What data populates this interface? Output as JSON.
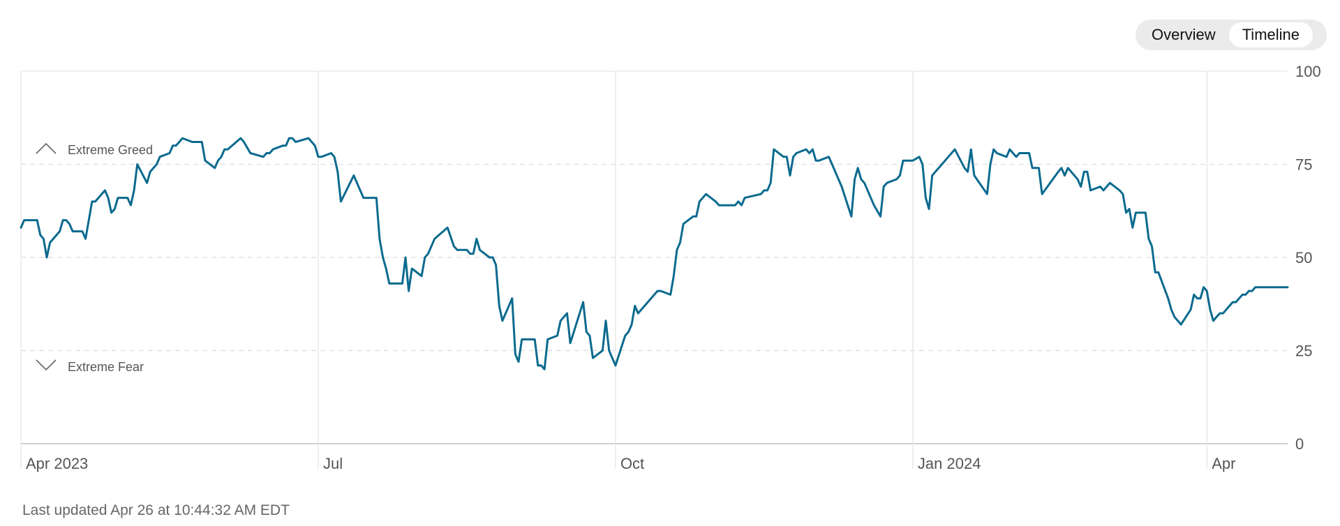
{
  "toggle": {
    "options": [
      "Overview",
      "Timeline"
    ],
    "selected": "Timeline"
  },
  "footer": {
    "last_updated": "Last updated Apr 26 at 10:44:32 AM EDT"
  },
  "chart_data": {
    "type": "line",
    "title": "",
    "xlabel": "",
    "ylabel": "",
    "ylim": [
      0,
      100
    ],
    "yticks": [
      "0",
      "25",
      "50",
      "75",
      "100"
    ],
    "xticks": [
      "Apr 2023",
      "Jul",
      "Oct",
      "Jan 2024",
      "Apr"
    ],
    "xlim": [
      "2023-03-31",
      "2024-04-26"
    ],
    "grid": true,
    "annotations": {
      "upper": "Extreme Greed",
      "lower": "Extreme Fear"
    },
    "line_color": "#0b6a8e",
    "series": [
      {
        "points": [
          [
            "2023-03-31",
            58
          ],
          [
            "2023-04-01",
            60
          ],
          [
            "2023-04-05",
            60
          ],
          [
            "2023-04-06",
            56
          ],
          [
            "2023-04-07",
            55
          ],
          [
            "2023-04-08",
            50
          ],
          [
            "2023-04-09",
            54
          ],
          [
            "2023-04-12",
            57
          ],
          [
            "2023-04-13",
            60
          ],
          [
            "2023-04-14",
            60
          ],
          [
            "2023-04-15",
            59
          ],
          [
            "2023-04-16",
            57
          ],
          [
            "2023-04-19",
            57
          ],
          [
            "2023-04-20",
            55
          ],
          [
            "2023-04-22",
            65
          ],
          [
            "2023-04-23",
            65
          ],
          [
            "2023-04-26",
            68
          ],
          [
            "2023-04-27",
            66
          ],
          [
            "2023-04-28",
            62
          ],
          [
            "2023-04-29",
            63
          ],
          [
            "2023-04-30",
            66
          ],
          [
            "2023-05-03",
            66
          ],
          [
            "2023-05-04",
            64
          ],
          [
            "2023-05-05",
            68
          ],
          [
            "2023-05-06",
            75
          ],
          [
            "2023-05-09",
            70
          ],
          [
            "2023-05-10",
            73
          ],
          [
            "2023-05-12",
            75
          ],
          [
            "2023-05-13",
            77
          ],
          [
            "2023-05-16",
            78
          ],
          [
            "2023-05-17",
            80
          ],
          [
            "2023-05-18",
            80
          ],
          [
            "2023-05-19",
            81
          ],
          [
            "2023-05-20",
            82
          ],
          [
            "2023-05-23",
            81
          ],
          [
            "2023-05-26",
            81
          ],
          [
            "2023-05-27",
            76
          ],
          [
            "2023-05-30",
            74
          ],
          [
            "2023-05-31",
            76
          ],
          [
            "2023-06-01",
            77
          ],
          [
            "2023-06-02",
            79
          ],
          [
            "2023-06-03",
            79
          ],
          [
            "2023-06-07",
            82
          ],
          [
            "2023-06-08",
            81
          ],
          [
            "2023-06-10",
            78
          ],
          [
            "2023-06-14",
            77
          ],
          [
            "2023-06-15",
            78
          ],
          [
            "2023-06-16",
            78
          ],
          [
            "2023-06-17",
            79
          ],
          [
            "2023-06-20",
            80
          ],
          [
            "2023-06-21",
            80
          ],
          [
            "2023-06-22",
            82
          ],
          [
            "2023-06-23",
            82
          ],
          [
            "2023-06-24",
            81
          ],
          [
            "2023-06-28",
            82
          ],
          [
            "2023-06-29",
            81
          ],
          [
            "2023-06-30",
            80
          ],
          [
            "2023-07-01",
            77
          ],
          [
            "2023-07-02",
            77
          ],
          [
            "2023-07-05",
            78
          ],
          [
            "2023-07-06",
            77
          ],
          [
            "2023-07-07",
            73
          ],
          [
            "2023-07-08",
            65
          ],
          [
            "2023-07-12",
            72
          ],
          [
            "2023-07-13",
            70
          ],
          [
            "2023-07-15",
            66
          ],
          [
            "2023-07-19",
            66
          ],
          [
            "2023-07-20",
            55
          ],
          [
            "2023-07-21",
            50
          ],
          [
            "2023-07-22",
            47
          ],
          [
            "2023-07-23",
            43
          ],
          [
            "2023-07-27",
            43
          ],
          [
            "2023-07-28",
            50
          ],
          [
            "2023-07-29",
            41
          ],
          [
            "2023-07-30",
            47
          ],
          [
            "2023-08-02",
            45
          ],
          [
            "2023-08-03",
            50
          ],
          [
            "2023-08-04",
            51
          ],
          [
            "2023-08-06",
            55
          ],
          [
            "2023-08-10",
            58
          ],
          [
            "2023-08-12",
            53
          ],
          [
            "2023-08-13",
            52
          ],
          [
            "2023-08-16",
            52
          ],
          [
            "2023-08-17",
            51
          ],
          [
            "2023-08-18",
            51
          ],
          [
            "2023-08-19",
            55
          ],
          [
            "2023-08-20",
            52
          ],
          [
            "2023-08-23",
            50
          ],
          [
            "2023-08-24",
            50
          ],
          [
            "2023-08-25",
            48
          ],
          [
            "2023-08-26",
            37
          ],
          [
            "2023-08-27",
            33
          ],
          [
            "2023-08-30",
            39
          ],
          [
            "2023-08-31",
            24
          ],
          [
            "2023-09-01",
            22
          ],
          [
            "2023-09-02",
            28
          ],
          [
            "2023-09-03",
            28
          ],
          [
            "2023-09-06",
            28
          ],
          [
            "2023-09-07",
            21
          ],
          [
            "2023-09-08",
            21
          ],
          [
            "2023-09-09",
            20
          ],
          [
            "2023-09-10",
            28
          ],
          [
            "2023-09-13",
            29
          ],
          [
            "2023-09-14",
            33
          ],
          [
            "2023-09-16",
            35
          ],
          [
            "2023-09-17",
            27
          ],
          [
            "2023-09-21",
            38
          ],
          [
            "2023-09-22",
            30
          ],
          [
            "2023-09-23",
            29
          ],
          [
            "2023-09-24",
            23
          ],
          [
            "2023-09-27",
            25
          ],
          [
            "2023-09-28",
            33
          ],
          [
            "2023-09-29",
            25
          ],
          [
            "2023-09-30",
            23
          ],
          [
            "2023-10-01",
            21
          ],
          [
            "2023-10-04",
            29
          ],
          [
            "2023-10-05",
            30
          ],
          [
            "2023-10-06",
            32
          ],
          [
            "2023-10-07",
            37
          ],
          [
            "2023-10-08",
            35
          ],
          [
            "2023-10-11",
            38
          ],
          [
            "2023-10-12",
            39
          ],
          [
            "2023-10-13",
            40
          ],
          [
            "2023-10-14",
            41
          ],
          [
            "2023-10-15",
            41
          ],
          [
            "2023-10-18",
            40
          ],
          [
            "2023-10-19",
            45
          ],
          [
            "2023-10-20",
            52
          ],
          [
            "2023-10-21",
            54
          ],
          [
            "2023-10-22",
            59
          ],
          [
            "2023-10-25",
            61
          ],
          [
            "2023-10-26",
            61
          ],
          [
            "2023-10-27",
            65
          ],
          [
            "2023-10-29",
            67
          ],
          [
            "2023-11-01",
            65
          ],
          [
            "2023-11-02",
            64
          ],
          [
            "2023-11-03",
            64
          ],
          [
            "2023-11-07",
            64
          ],
          [
            "2023-11-08",
            65
          ],
          [
            "2023-11-09",
            64
          ],
          [
            "2023-11-10",
            66
          ],
          [
            "2023-11-15",
            67
          ],
          [
            "2023-11-16",
            68
          ],
          [
            "2023-11-17",
            68
          ],
          [
            "2023-11-18",
            70
          ],
          [
            "2023-11-19",
            79
          ],
          [
            "2023-11-22",
            77
          ],
          [
            "2023-11-23",
            77
          ],
          [
            "2023-11-24",
            72
          ],
          [
            "2023-11-25",
            77
          ],
          [
            "2023-11-26",
            78
          ],
          [
            "2023-11-29",
            79
          ],
          [
            "2023-11-30",
            78
          ],
          [
            "2023-12-01",
            79
          ],
          [
            "2023-12-02",
            76
          ],
          [
            "2023-12-03",
            76
          ],
          [
            "2023-12-06",
            77
          ],
          [
            "2023-12-07",
            75
          ],
          [
            "2023-12-08",
            73
          ],
          [
            "2023-12-10",
            69
          ],
          [
            "2023-12-13",
            61
          ],
          [
            "2023-12-14",
            71
          ],
          [
            "2023-12-15",
            74
          ],
          [
            "2023-12-16",
            71
          ],
          [
            "2023-12-17",
            70
          ],
          [
            "2023-12-20",
            64
          ],
          [
            "2023-12-22",
            61
          ],
          [
            "2023-12-23",
            69
          ],
          [
            "2023-12-24",
            70
          ],
          [
            "2023-12-27",
            71
          ],
          [
            "2023-12-28",
            72
          ],
          [
            "2023-12-29",
            76
          ],
          [
            "2023-12-30",
            76
          ],
          [
            "2024-01-01",
            76
          ],
          [
            "2024-01-03",
            77
          ],
          [
            "2024-01-04",
            75
          ],
          [
            "2024-01-05",
            66
          ],
          [
            "2024-01-06",
            63
          ],
          [
            "2024-01-07",
            72
          ],
          [
            "2024-01-10",
            75
          ],
          [
            "2024-01-11",
            76
          ],
          [
            "2024-01-12",
            77
          ],
          [
            "2024-01-14",
            79
          ],
          [
            "2024-01-17",
            74
          ],
          [
            "2024-01-18",
            73
          ],
          [
            "2024-01-19",
            79
          ],
          [
            "2024-01-20",
            72
          ],
          [
            "2024-01-24",
            67
          ],
          [
            "2024-01-25",
            75
          ],
          [
            "2024-01-26",
            79
          ],
          [
            "2024-01-27",
            78
          ],
          [
            "2024-01-30",
            77
          ],
          [
            "2024-01-31",
            79
          ],
          [
            "2024-02-01",
            78
          ],
          [
            "2024-02-02",
            77
          ],
          [
            "2024-02-03",
            78
          ],
          [
            "2024-02-06",
            78
          ],
          [
            "2024-02-07",
            74
          ],
          [
            "2024-02-08",
            74
          ],
          [
            "2024-02-09",
            74
          ],
          [
            "2024-02-10",
            67
          ],
          [
            "2024-02-15",
            73
          ],
          [
            "2024-02-16",
            74
          ],
          [
            "2024-02-17",
            72
          ],
          [
            "2024-02-18",
            74
          ],
          [
            "2024-02-21",
            71
          ],
          [
            "2024-02-22",
            69
          ],
          [
            "2024-02-23",
            73
          ],
          [
            "2024-02-24",
            73
          ],
          [
            "2024-02-25",
            68
          ],
          [
            "2024-02-28",
            69
          ],
          [
            "2024-02-29",
            68
          ],
          [
            "2024-03-01",
            69
          ],
          [
            "2024-03-02",
            70
          ],
          [
            "2024-03-05",
            68
          ],
          [
            "2024-03-06",
            67
          ],
          [
            "2024-03-07",
            62
          ],
          [
            "2024-03-08",
            63
          ],
          [
            "2024-03-09",
            58
          ],
          [
            "2024-03-10",
            62
          ],
          [
            "2024-03-13",
            62
          ],
          [
            "2024-03-14",
            55
          ],
          [
            "2024-03-15",
            53
          ],
          [
            "2024-03-16",
            46
          ],
          [
            "2024-03-17",
            46
          ],
          [
            "2024-03-20",
            39
          ],
          [
            "2024-03-21",
            36
          ],
          [
            "2024-03-22",
            34
          ],
          [
            "2024-03-23",
            33
          ],
          [
            "2024-03-24",
            32
          ],
          [
            "2024-03-27",
            36
          ],
          [
            "2024-03-28",
            40
          ],
          [
            "2024-03-29",
            39
          ],
          [
            "2024-03-30",
            39
          ],
          [
            "2024-03-31",
            42
          ],
          [
            "2024-04-01",
            41
          ],
          [
            "2024-04-02",
            36
          ],
          [
            "2024-04-03",
            33
          ],
          [
            "2024-04-04",
            34
          ],
          [
            "2024-04-05",
            35
          ],
          [
            "2024-04-06",
            35
          ],
          [
            "2024-04-07",
            36
          ],
          [
            "2024-04-08",
            37
          ],
          [
            "2024-04-09",
            38
          ],
          [
            "2024-04-10",
            38
          ],
          [
            "2024-04-11",
            39
          ],
          [
            "2024-04-12",
            40
          ],
          [
            "2024-04-13",
            40
          ],
          [
            "2024-04-14",
            41
          ],
          [
            "2024-04-15",
            41
          ],
          [
            "2024-04-16",
            42
          ],
          [
            "2024-04-17",
            42
          ],
          [
            "2024-04-18",
            42
          ],
          [
            "2024-04-19",
            42
          ],
          [
            "2024-04-20",
            42
          ],
          [
            "2024-04-21",
            42
          ],
          [
            "2024-04-22",
            42
          ],
          [
            "2024-04-23",
            42
          ],
          [
            "2024-04-24",
            42
          ],
          [
            "2024-04-25",
            42
          ],
          [
            "2024-04-26",
            42
          ]
        ]
      }
    ]
  }
}
